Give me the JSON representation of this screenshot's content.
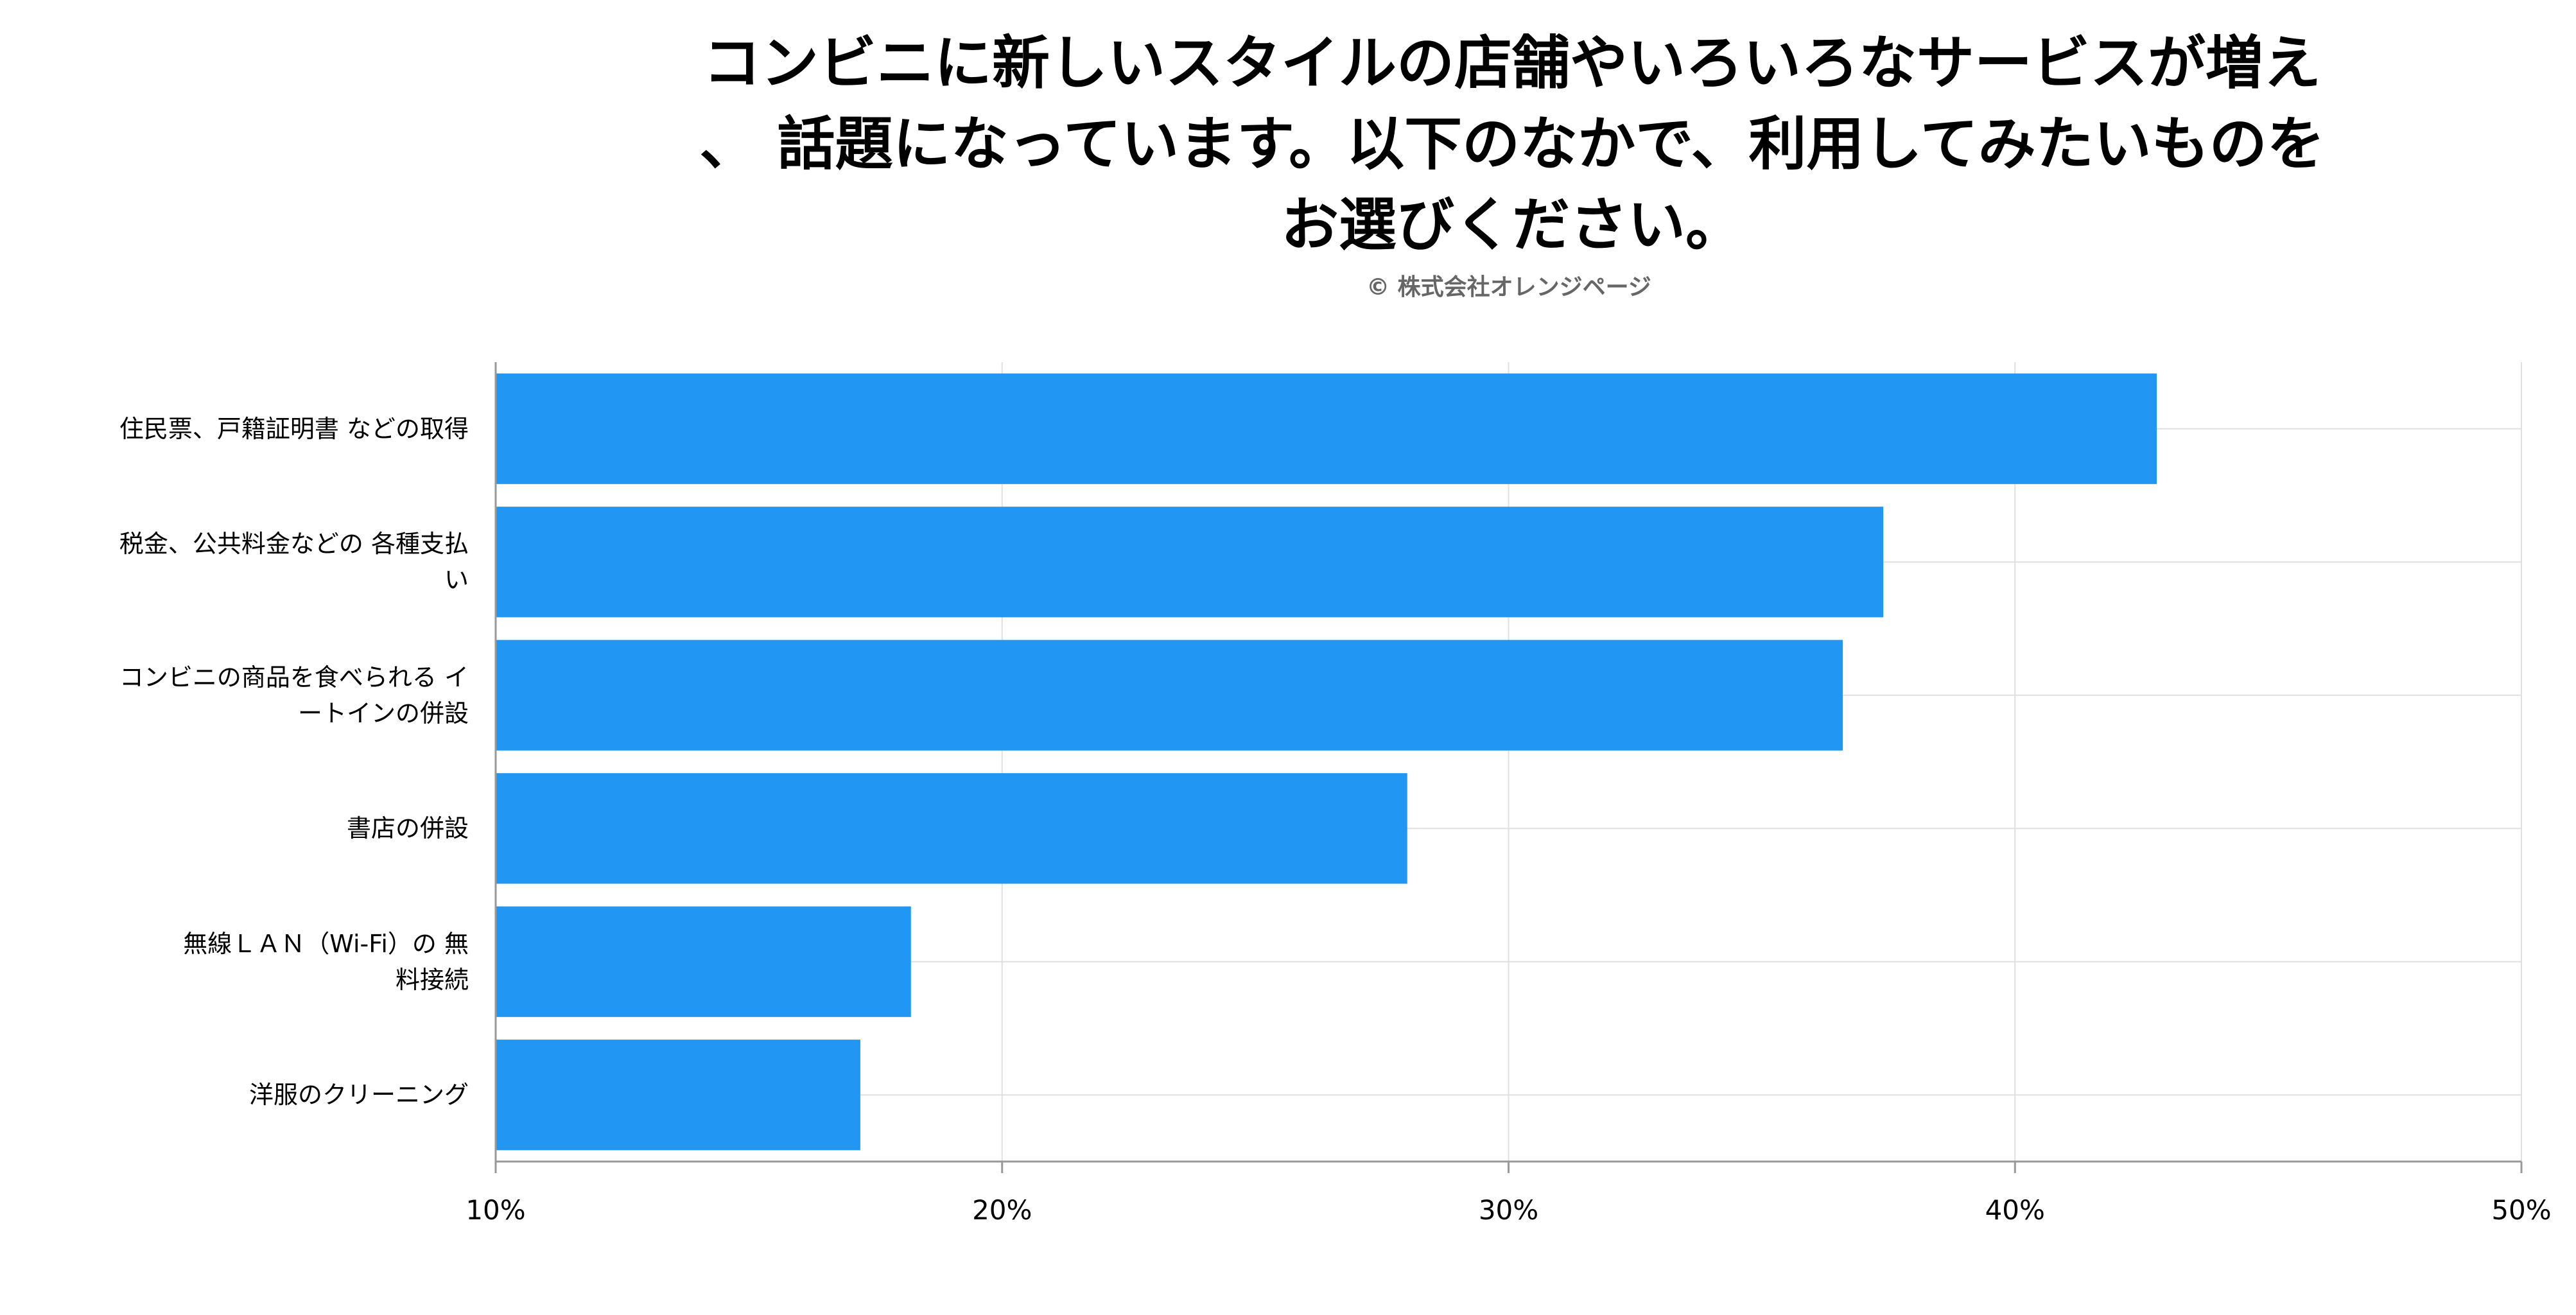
{
  "title_lines": [
    "コンビニに新しいスタイルの店舗やいろいろなサービスが増え",
    "、 話題になっています。以下のなかで、利用してみたいものを",
    "お選びください。"
  ],
  "copyright": "© 株式会社オレンジページ",
  "colors": {
    "bar": "#2196f3",
    "grid": "#e0e0e0",
    "axis": "#999999"
  },
  "chart_data": {
    "type": "bar",
    "orientation": "horizontal",
    "title": "コンビニに新しいスタイルの店舗やいろいろなサービスが増え、 話題になっています。以下のなかで、利用してみたいものをお選びください。",
    "categories": [
      "住民票、戸籍証明書 などの取得",
      "税金、公共料金などの 各種支払い",
      "コンビニの商品を食べられる イートインの併設",
      "書店の併設",
      "無線ＬＡＮ（Wi-Fi）の 無料接続",
      "洋服のクリーニング"
    ],
    "category_label_lines": [
      [
        "住民票、戸籍証明書 などの取得"
      ],
      [
        "税金、公共料金などの 各種支払",
        "い"
      ],
      [
        "コンビニの商品を食べられる イ",
        "ートインの併設"
      ],
      [
        "書店の併設"
      ],
      [
        "無線ＬＡＮ（Wi-Fi）の 無",
        "料接続"
      ],
      [
        "洋服のクリーニング"
      ]
    ],
    "values": [
      42.8,
      37.4,
      36.6,
      28.0,
      18.2,
      17.2
    ],
    "unit": "%",
    "xlim": [
      10,
      50
    ],
    "xticks": [
      10,
      20,
      30,
      40,
      50
    ],
    "xtick_labels": [
      "10%",
      "20%",
      "30%",
      "40%",
      "50%"
    ],
    "grid": true,
    "legend": "none"
  }
}
